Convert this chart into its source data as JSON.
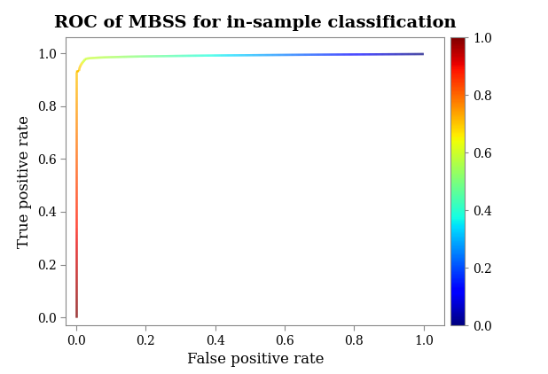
{
  "title": "ROC of MBSS for in-sample classification",
  "xlabel": "False positive rate",
  "ylabel": "True positive rate",
  "xlim": [
    -0.03,
    1.06
  ],
  "ylim": [
    -0.03,
    1.06
  ],
  "xticks": [
    0.0,
    0.2,
    0.4,
    0.6,
    0.8,
    1.0
  ],
  "yticks": [
    0.0,
    0.2,
    0.4,
    0.6,
    0.8,
    1.0
  ],
  "colorbar_ticks": [
    0.0,
    0.2,
    0.4,
    0.6,
    0.8,
    1.0
  ],
  "background_color": "#ffffff",
  "title_fontsize": 14,
  "label_fontsize": 12,
  "tick_fontsize": 10,
  "line_width": 1.8,
  "n_points": 2000
}
